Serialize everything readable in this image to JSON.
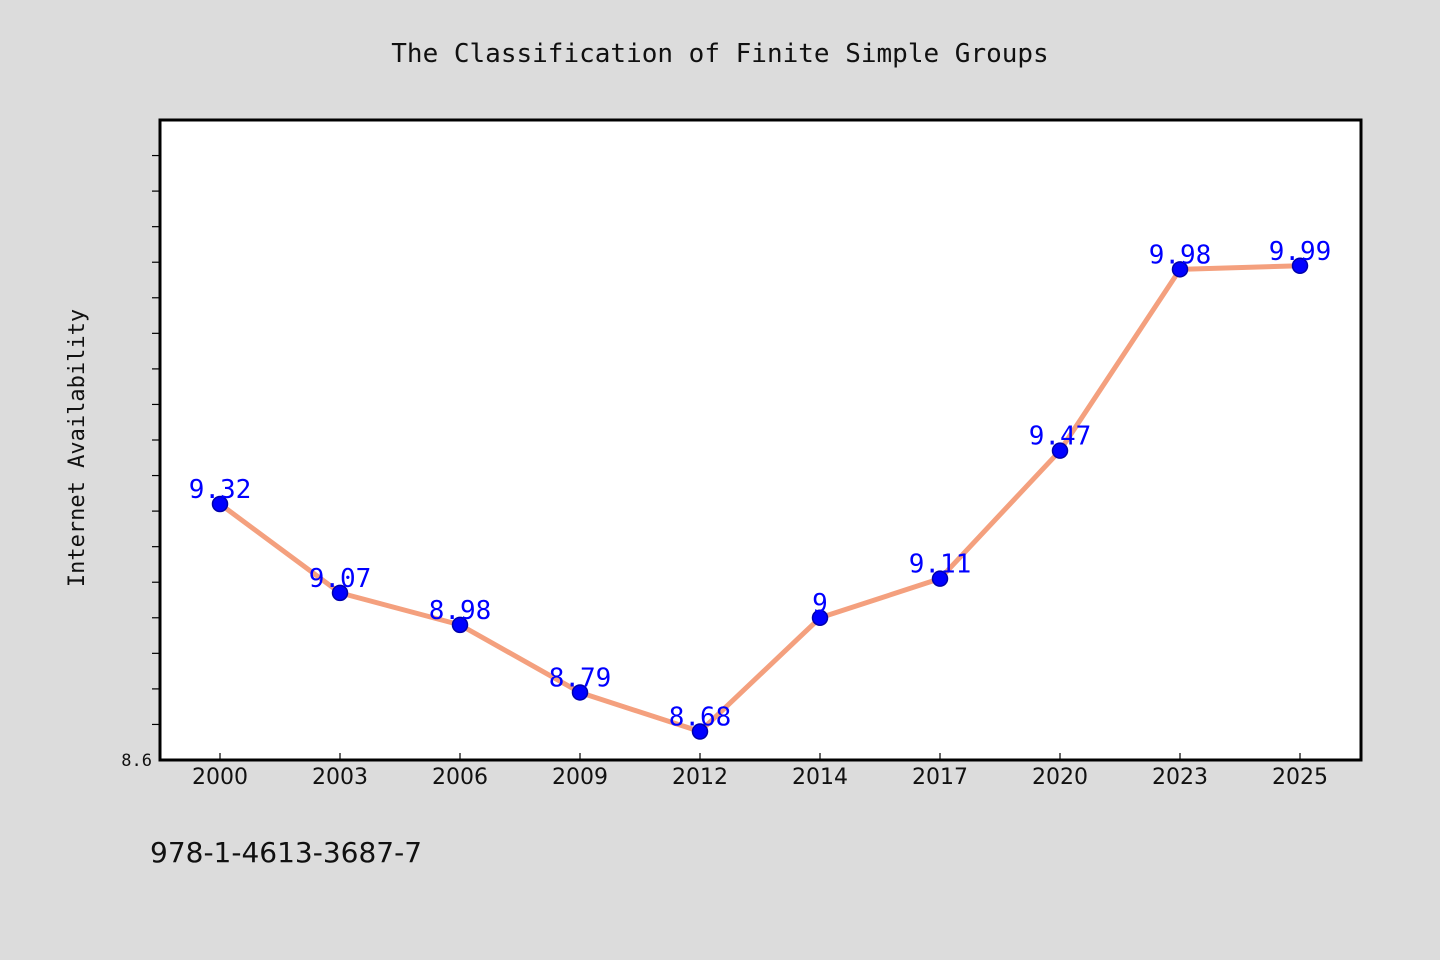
{
  "chart_data": {
    "type": "line",
    "title": "The Classification of Finite Simple Groups",
    "xlabel": "",
    "ylabel": "Internet Availability",
    "categories": [
      "2000",
      "2003",
      "2006",
      "2009",
      "2012",
      "2014",
      "2017",
      "2020",
      "2023",
      "2025"
    ],
    "series": [
      {
        "values": [
          9.32,
          9.07,
          8.98,
          8.79,
          8.68,
          9.0,
          9.11,
          9.47,
          9.98,
          9.99
        ]
      }
    ],
    "data_labels": [
      "9.32",
      "9.07",
      "8.98",
      "8.79",
      "8.68",
      "9",
      "9.11",
      "9.47",
      "9.98",
      "9.99"
    ],
    "ylim": [
      8.6,
      10.4
    ],
    "y_tick_labels": [
      "8.6"
    ],
    "grid": false,
    "colors": {
      "line": "#f4a07e",
      "marker": "#0000ff",
      "marker_edge": "#0000aa",
      "label": "#0000ff",
      "background": "#dcdcdc",
      "plot_background": "#ffffff"
    }
  },
  "footer": {
    "isbn": "978-1-4613-3687-7"
  }
}
